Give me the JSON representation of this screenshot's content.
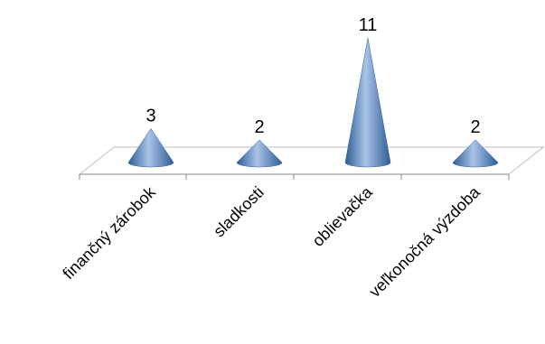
{
  "chart_data": {
    "type": "bar",
    "shape": "cone-3d",
    "categories": [
      "finančný zárobok",
      "sladkosti",
      "oblievačka",
      "veľkonočná výzdoba"
    ],
    "values": [
      3,
      2,
      11,
      2
    ],
    "data_labels": [
      "3",
      "2",
      "11",
      "2"
    ],
    "title": "",
    "xlabel": "",
    "ylabel": "",
    "ylim": [
      0,
      11
    ],
    "grid": false,
    "legend": "none",
    "colors": {
      "cone_dark": "#2f5c96",
      "cone_mid": "#4f81bd",
      "cone_light": "#a9c4e8",
      "floor_stroke": "#bfbfbf",
      "axis_stroke": "#868686"
    }
  }
}
